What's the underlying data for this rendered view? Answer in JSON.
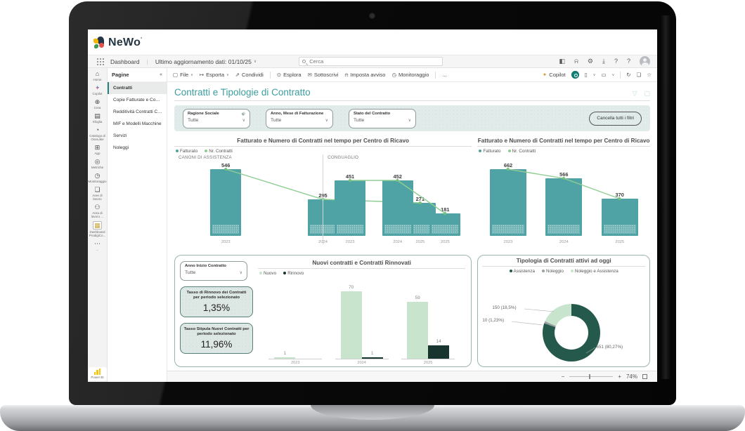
{
  "logo": {
    "text": "NeWo"
  },
  "header": {
    "nav_label": "Dashboard",
    "last_update": "Ultimo aggiornamento dati: 01/10/25",
    "search_placeholder": "Cerca",
    "icons": [
      "side-panel",
      "notifications",
      "settings",
      "download",
      "help",
      "account"
    ]
  },
  "toolbar": {
    "items": [
      {
        "label": "File",
        "icon": "file",
        "dropdown": true
      },
      {
        "label": "Esporta",
        "icon": "export",
        "dropdown": true
      },
      {
        "label": "Condividi",
        "icon": "share"
      },
      {
        "label": "Esplora",
        "icon": "explore"
      },
      {
        "label": "Sottoscrivi",
        "icon": "subscribe"
      },
      {
        "label": "Imposta avviso",
        "icon": "set-alert"
      },
      {
        "label": "Monitoraggio",
        "icon": "monitoring"
      }
    ],
    "more": "...",
    "copilot_label": "Copilot",
    "right_icons": [
      "app-badge",
      "bookmarks",
      "view",
      "refresh",
      "comment",
      "favorite"
    ]
  },
  "rail": {
    "items": [
      {
        "label": "Home",
        "icon": "home"
      },
      {
        "label": "Copilot",
        "icon": "copilot"
      },
      {
        "label": "Crea",
        "icon": "create"
      },
      {
        "label": "Sfoglia",
        "icon": "browse"
      },
      {
        "label": "Catalogo di OneLake",
        "icon": "onelake-catalog"
      },
      {
        "label": "App",
        "icon": "apps"
      },
      {
        "label": "Metriche",
        "icon": "metrics"
      },
      {
        "label": "Monitoraggio",
        "icon": "monitoring"
      },
      {
        "label": "Aree di lavoro",
        "icon": "workspaces"
      },
      {
        "label": "Area di lavoro ...",
        "icon": "my-workspace"
      },
      {
        "label": "Dashboard ProdigiCo...",
        "icon": "dashboard"
      },
      {
        "label": "...",
        "icon": "more"
      }
    ],
    "bottom_label": "Power BI"
  },
  "sidebar": {
    "title": "Pagine",
    "collapse_icon": "«",
    "items": [
      {
        "label": "Contratti",
        "selected": true
      },
      {
        "label": "Copie Fatturate e Copie ...",
        "selected": false
      },
      {
        "label": "Redditività Contratti Co...",
        "selected": false
      },
      {
        "label": "MIF e Modelli Macchine",
        "selected": false
      },
      {
        "label": "Servizi",
        "selected": false
      },
      {
        "label": "Noleggi",
        "selected": false
      }
    ]
  },
  "report": {
    "title": "Contratti e Tipologie di Contratto",
    "filters": [
      {
        "label": "Ragione Sociale",
        "value": "Tutte",
        "eraser": true
      },
      {
        "label": "Anno, Mese di Fatturazione",
        "value": "Tutte",
        "eraser": false
      },
      {
        "label": "Stato del Contratto",
        "value": "Tutte",
        "eraser": false
      }
    ],
    "clear_button": "Cancella tutti i filtri",
    "kpi_panel": {
      "filter_label": "Anno Inizio Contratto",
      "filter_value": "Tutte",
      "kpis": [
        {
          "label": "Tasso di Rinnovo dei Contratti per periodo selezionato",
          "value": "1,35%"
        },
        {
          "label": "Tasso Stipula Nuovi Contratti per periodo selezionato",
          "value": "11,96%"
        }
      ]
    }
  },
  "chart_data": [
    {
      "id": "fatturato-contratti-left",
      "type": "bar",
      "title": "Fatturato e Numero di Contratti nel tempo per Centro di Ricavo",
      "legend": [
        {
          "name": "Fatturato",
          "color": "#4fa3a5"
        },
        {
          "name": "Nr. Contratti",
          "color": "#8fce93"
        }
      ],
      "note": "bars = Fatturato (unlabeled), line with data labels = Nr. Contratti",
      "groups": [
        {
          "name": "CANONI DI ASSISTENZA",
          "categories": [
            "2023",
            "2024",
            "2025"
          ],
          "values": [
            546,
            295,
            271
          ]
        },
        {
          "name": "CONGUAGLIO",
          "categories": [
            "2023",
            "2024",
            "2025"
          ],
          "values": [
            451,
            452,
            181
          ]
        }
      ],
      "ymax": 584
    },
    {
      "id": "fatturato-contratti-right",
      "type": "bar",
      "title": "Fatturato e Numero di Contratti nel tempo per Centro di Ricavo",
      "legend": [
        {
          "name": "Fatturato",
          "color": "#4fa3a5"
        },
        {
          "name": "Nr. Contratti",
          "color": "#8fce93"
        }
      ],
      "groups": [
        {
          "name": "",
          "categories": [
            "2023",
            "2024",
            "2025"
          ],
          "values": [
            662,
            566,
            370
          ]
        }
      ],
      "ymax": 708
    },
    {
      "id": "nuovi-rinnovati",
      "type": "bar",
      "title": "Nuovi contratti e Contratti Rinnovati",
      "categories": [
        "2023",
        "2024",
        "2025"
      ],
      "series": [
        {
          "name": "Nuovo",
          "color": "#c8e4cc",
          "values": [
            1,
            70,
            59
          ]
        },
        {
          "name": "Rinnovo",
          "color": "#17352e",
          "values": [
            0,
            1,
            14
          ]
        }
      ],
      "ymax": 80
    },
    {
      "id": "tipologia-contratti",
      "type": "donut",
      "title": "Tipologia di Contratti attivi ad oggi",
      "slices": [
        {
          "name": "Assistenza",
          "value": 651,
          "pct": 80.27,
          "label": "651 (80,27%)",
          "color": "#25594b"
        },
        {
          "name": "Noleggio",
          "value": 10,
          "pct": 1.23,
          "label": "10 (1,23%)",
          "color": "#98a1a4"
        },
        {
          "name": "Noleggio e Assistenza",
          "value": 150,
          "pct": 18.5,
          "label": "150 (18,5%)",
          "color": "#c8e4cc"
        }
      ]
    }
  ],
  "status_bar": {
    "zoom_level": "74%"
  }
}
